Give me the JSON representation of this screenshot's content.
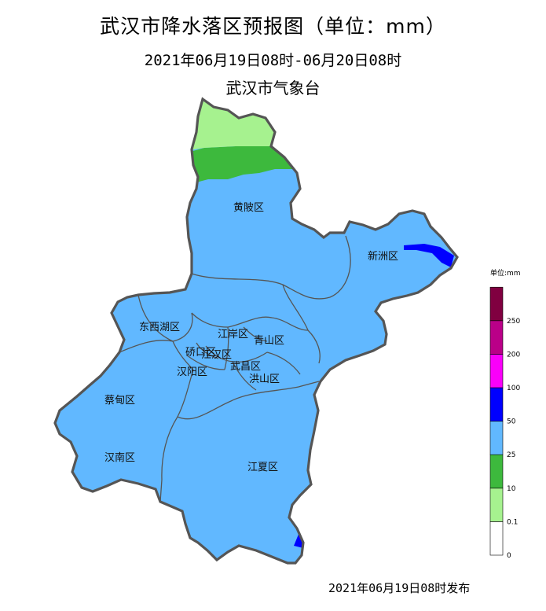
{
  "header": {
    "title": "武汉市降水落区预报图（单位：mm）",
    "subtitle": "2021年06月19日08时-06月20日08时",
    "org": "武汉市气象台"
  },
  "footer": {
    "issued": "2021年06月19日08时发布"
  },
  "districts": [
    "黄陂区",
    "新洲区",
    "东西湖区",
    "江岸区",
    "青山区",
    "硚口区",
    "江汉区",
    "汉阳区",
    "武昌区",
    "洪山区",
    "蔡甸区",
    "汉南区",
    "江夏区"
  ],
  "legend": {
    "title": "单位:mm",
    "items": [
      {
        "label": "0",
        "color": "#ffffff"
      },
      {
        "label": "0.1",
        "color": "#a6f28f"
      },
      {
        "label": "10",
        "color": "#3db93d"
      },
      {
        "label": "25",
        "color": "#61b8ff"
      },
      {
        "label": "50",
        "color": "#0000ff"
      },
      {
        "label": "100",
        "color": "#fa00fa"
      },
      {
        "label": "200",
        "color": "#ba0088"
      },
      {
        "label": "250",
        "color": "#800040"
      }
    ]
  },
  "colors": {
    "rain_0_1_10": "#a6f28f",
    "rain_10_25": "#3db93d",
    "rain_25_50": "#61b8ff",
    "rain_50_100": "#0000ff",
    "border": "#555555"
  }
}
